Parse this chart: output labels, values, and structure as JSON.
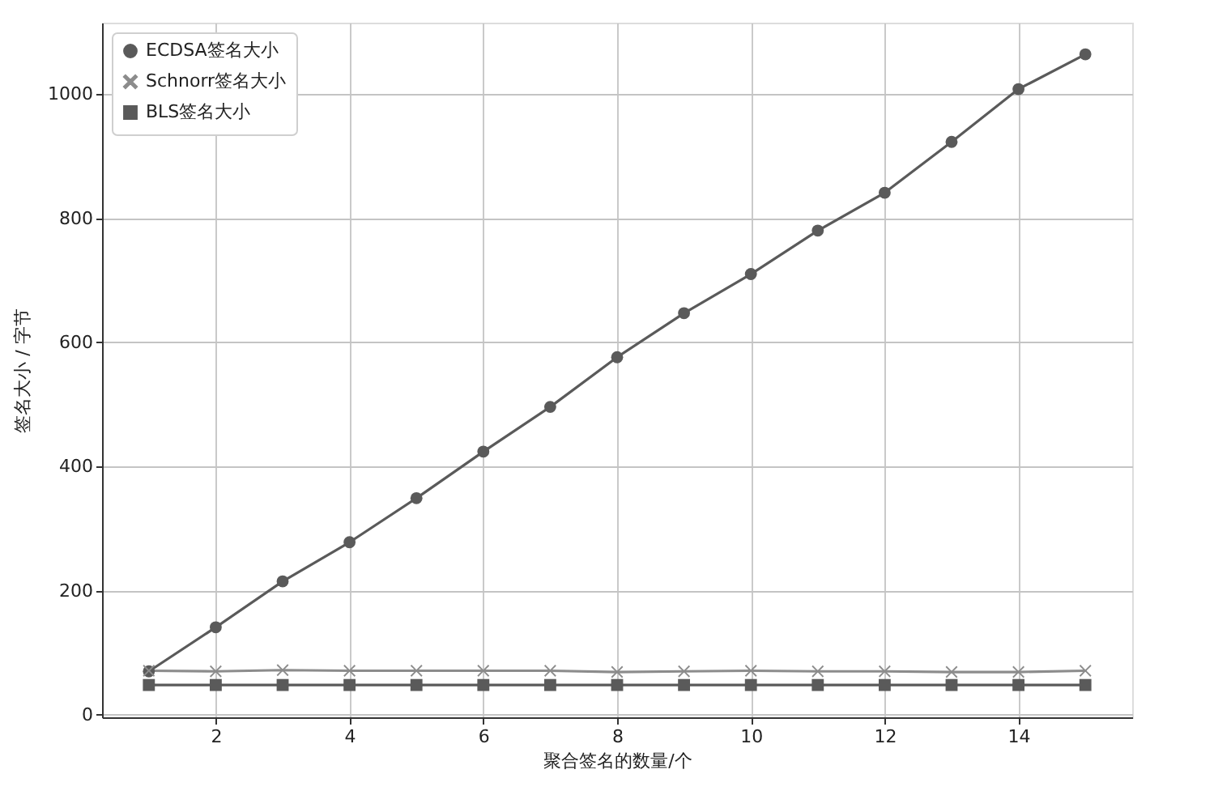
{
  "chart_data": {
    "type": "line",
    "xlabel": "聚合签名的数量/个",
    "ylabel": "签名大小 / 字节",
    "x": [
      1,
      2,
      3,
      4,
      5,
      6,
      7,
      8,
      9,
      10,
      11,
      12,
      13,
      14,
      15
    ],
    "series": [
      {
        "name": "ECDSA签名大小",
        "color": "#5a5a5a",
        "marker": "circle",
        "values": [
          70,
          141,
          215,
          278,
          349,
          424,
          496,
          576,
          647,
          710,
          780,
          841,
          923,
          1008,
          1064
        ]
      },
      {
        "name": "Schnorr签名大小",
        "color": "#8c8c8c",
        "marker": "cross",
        "values": [
          71,
          70,
          72,
          71,
          71,
          71,
          71,
          69,
          70,
          71,
          70,
          70,
          69,
          69,
          71
        ]
      },
      {
        "name": "BLS签名大小",
        "color": "#5a5a5a",
        "marker": "square",
        "values": [
          48,
          48,
          48,
          48,
          48,
          48,
          48,
          48,
          48,
          48,
          48,
          48,
          48,
          48,
          48
        ]
      }
    ],
    "xlim": [
      0.3,
      15.7
    ],
    "ylim": [
      -4,
      1115
    ],
    "xticks": [
      2,
      4,
      6,
      8,
      10,
      12,
      14
    ],
    "yticks": [
      0,
      200,
      400,
      600,
      800,
      1000
    ],
    "grid": true,
    "legend": "top left",
    "line_style": "solid"
  }
}
